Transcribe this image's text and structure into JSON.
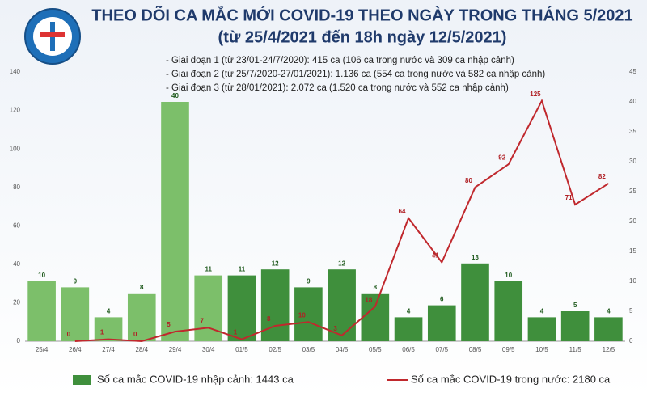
{
  "chart_data": {
    "type": "bar-line",
    "title": "THEO DÕI CA MẮC MỚI COVID-19 THEO NGÀY TRONG THÁNG 5/2021",
    "subtitle": "(từ 25/4/2021 đến 18h ngày 12/5/2021)",
    "annotations": [
      "- Giai đoạn 1 (từ 23/01-24/7/2020): 415 ca (106 ca trong nước và 309 ca nhập cảnh)",
      "- Giai đoạn 2 (từ 25/7/2020-27/01/2021): 1.136 ca (554 ca trong nước và 582 ca nhập cảnh)",
      "- Giai đoạn 3 (từ 28/01/2021): 2.072 ca (1.520 ca trong nước và 552 ca nhập cảnh)"
    ],
    "categories": [
      "25/4",
      "26/4",
      "27/4",
      "28/4",
      "29/4",
      "30/4",
      "01/5",
      "02/5",
      "03/5",
      "04/5",
      "05/5",
      "06/5",
      "07/5",
      "08/5",
      "09/5",
      "10/5",
      "11/5",
      "12/5"
    ],
    "series": [
      {
        "name": "Số ca mắc COVID-19 nhập cảnh: 1443 ca",
        "type": "bar",
        "axis": "y2",
        "color": "#3f8f3c",
        "colors": [
          "#7cbf6a",
          "#7cbf6a",
          "#7cbf6a",
          "#7cbf6a",
          "#7cbf6a",
          "#7cbf6a",
          "#3f8f3c",
          "#3f8f3c",
          "#3f8f3c",
          "#3f8f3c",
          "#3f8f3c",
          "#3f8f3c",
          "#3f8f3c",
          "#3f8f3c",
          "#3f8f3c",
          "#3f8f3c",
          "#3f8f3c",
          "#3f8f3c"
        ],
        "values": [
          10,
          9,
          4,
          8,
          40,
          11,
          11,
          12,
          9,
          12,
          8,
          4,
          6,
          13,
          10,
          4,
          5,
          4
        ]
      },
      {
        "name": "Số ca mắc COVID-19 trong nước: 2180 ca",
        "type": "line",
        "color": "#c0282d",
        "values": [
          null,
          0,
          1,
          0,
          5,
          7,
          1,
          8,
          10,
          3,
          18,
          64,
          41,
          80,
          92,
          125,
          71,
          82
        ]
      }
    ],
    "ylim": [
      0,
      140
    ],
    "yticks": [
      0,
      20,
      40,
      60,
      80,
      100,
      120,
      140
    ],
    "y2lim": [
      0,
      45
    ],
    "y2ticks": [
      0,
      5,
      10,
      15,
      20,
      25,
      30,
      35,
      40,
      45
    ],
    "grid": false
  }
}
